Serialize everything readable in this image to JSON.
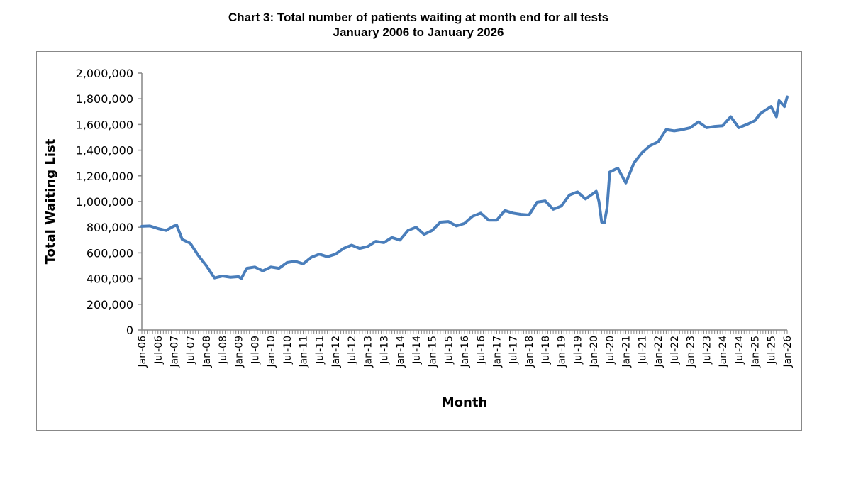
{
  "chart_data": {
    "type": "line",
    "title": "Chart 3: Total number of patients waiting at month end for all tests",
    "subtitle": "January 2006 to January 2026",
    "xlabel": "Month",
    "ylabel": "Total Waiting List",
    "ylim": [
      0,
      2000000
    ],
    "yticks": [
      "0",
      "200,000",
      "400,000",
      "600,000",
      "800,000",
      "1,000,000",
      "1,200,000",
      "1,400,000",
      "1,600,000",
      "1,800,000",
      "2,000,000"
    ],
    "xticks": [
      "Jan-06",
      "Jul-06",
      "Jan-07",
      "Jul-07",
      "Jan-08",
      "Jul-08",
      "Jan-09",
      "Jul-09",
      "Jan-10",
      "Jul-10",
      "Jan-11",
      "Jul-11",
      "Jan-12",
      "Jul-12",
      "Jan-13",
      "Jul-13",
      "Jan-14",
      "Jul-14",
      "Jan-15",
      "Jul-15",
      "Jan-16",
      "Jul-16",
      "Jan-17",
      "Jul-17",
      "Jan-18",
      "Jul-18",
      "Jan-19",
      "Jul-19",
      "Jan-20",
      "Jul-20",
      "Jan-21",
      "Jul-21",
      "Jan-22",
      "Jul-22",
      "Jan-23",
      "Jul-23",
      "Jan-24",
      "Jul-24",
      "Jan-25",
      "Jul-25",
      "Jan-26"
    ],
    "grid": false,
    "line_color": "#4a7ebb",
    "series": [
      {
        "x": [
          "2006-01",
          "2006-04",
          "2006-07",
          "2006-10",
          "2007-01",
          "2007-02",
          "2007-04",
          "2007-07",
          "2007-10",
          "2008-01",
          "2008-04",
          "2008-07",
          "2008-10",
          "2009-01",
          "2009-02",
          "2009-04",
          "2009-07",
          "2009-10",
          "2010-01",
          "2010-04",
          "2010-07",
          "2010-10",
          "2011-01",
          "2011-04",
          "2011-07",
          "2011-10",
          "2012-01",
          "2012-04",
          "2012-07",
          "2012-10",
          "2013-01",
          "2013-04",
          "2013-07",
          "2013-10",
          "2014-01",
          "2014-04",
          "2014-07",
          "2014-10",
          "2015-01",
          "2015-04",
          "2015-07",
          "2015-10",
          "2016-01",
          "2016-04",
          "2016-07",
          "2016-10",
          "2017-01",
          "2017-04",
          "2017-07",
          "2017-10",
          "2018-01",
          "2018-04",
          "2018-07",
          "2018-10",
          "2019-01",
          "2019-04",
          "2019-07",
          "2019-10",
          "2020-01",
          "2020-02",
          "2020-03",
          "2020-04",
          "2020-05",
          "2020-06",
          "2020-07",
          "2020-10",
          "2021-01",
          "2021-04",
          "2021-07",
          "2021-10",
          "2022-01",
          "2022-04",
          "2022-07",
          "2022-10",
          "2023-01",
          "2023-04",
          "2023-07",
          "2023-10",
          "2024-01",
          "2024-04",
          "2024-07",
          "2024-10",
          "2025-01",
          "2025-03",
          "2025-07",
          "2025-09",
          "2025-10",
          "2025-12",
          "2026-01"
        ],
        "values": [
          807000,
          810000,
          790000,
          775000,
          810000,
          815000,
          705000,
          675000,
          580000,
          500000,
          405000,
          420000,
          410000,
          415000,
          400000,
          480000,
          490000,
          460000,
          490000,
          480000,
          525000,
          535000,
          515000,
          565000,
          590000,
          570000,
          590000,
          635000,
          660000,
          635000,
          650000,
          690000,
          680000,
          720000,
          700000,
          775000,
          800000,
          745000,
          775000,
          840000,
          845000,
          810000,
          830000,
          885000,
          910000,
          855000,
          855000,
          930000,
          910000,
          900000,
          895000,
          995000,
          1005000,
          940000,
          965000,
          1050000,
          1075000,
          1020000,
          1065000,
          1080000,
          1000000,
          840000,
          835000,
          950000,
          1230000,
          1260000,
          1145000,
          1300000,
          1380000,
          1435000,
          1465000,
          1560000,
          1550000,
          1560000,
          1575000,
          1620000,
          1575000,
          1585000,
          1590000,
          1660000,
          1575000,
          1600000,
          1630000,
          1685000,
          1740000,
          1660000,
          1785000,
          1740000,
          1815000
        ]
      }
    ]
  }
}
